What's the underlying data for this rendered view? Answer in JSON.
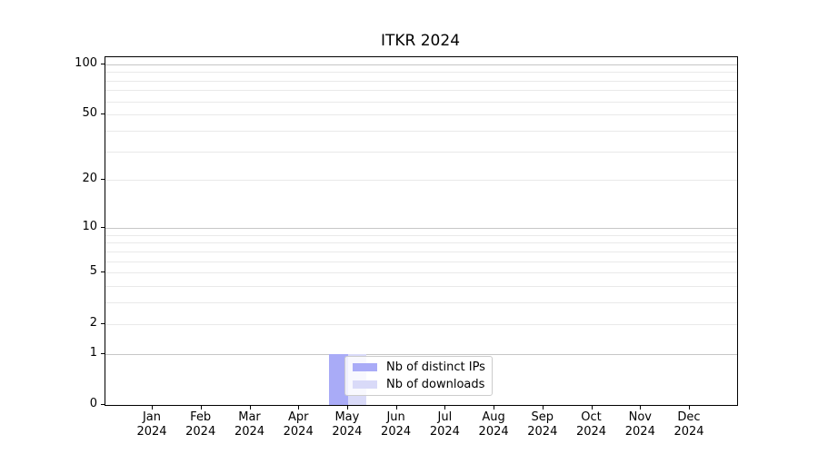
{
  "chart_data": {
    "type": "bar",
    "title": "ITKR 2024",
    "categories": [
      "Jan 2024",
      "Feb 2024",
      "Mar 2024",
      "Apr 2024",
      "May 2024",
      "Jun 2024",
      "Jul 2024",
      "Aug 2024",
      "Sep 2024",
      "Oct 2024",
      "Nov 2024",
      "Dec 2024"
    ],
    "series": [
      {
        "name": "Nb of distinct IPs",
        "color": "#a9abf7",
        "values": [
          0,
          0,
          0,
          0,
          1,
          0,
          0,
          0,
          0,
          0,
          0,
          0
        ]
      },
      {
        "name": "Nb of downloads",
        "color": "#d9daf8",
        "values": [
          0,
          0,
          0,
          0,
          1,
          0,
          0,
          0,
          0,
          0,
          0,
          0
        ]
      }
    ],
    "xlabel": "",
    "ylabel": "",
    "yscale": "log1p",
    "ylim": [
      0,
      110
    ],
    "yticks": [
      0,
      1,
      2,
      5,
      10,
      20,
      50,
      100
    ],
    "grid_major": [
      1,
      10,
      100
    ],
    "grid_minor": [
      2,
      3,
      4,
      5,
      6,
      7,
      8,
      9,
      20,
      30,
      40,
      50,
      60,
      70,
      80,
      90
    ],
    "legend_position": "inside-bottom-left-of-center",
    "grid": true
  },
  "legend": {
    "items": [
      {
        "label": "Nb of distinct IPs",
        "color": "#a9abf7"
      },
      {
        "label": "Nb of downloads",
        "color": "#d9daf8"
      }
    ]
  },
  "colors": {
    "bar_distinct_ips": "#a9abf7",
    "bar_downloads": "#d9daf8",
    "grid_major": "#c6c6c6",
    "grid_minor": "#e9e9e9",
    "axis": "#000000",
    "legend_border": "#cccccc",
    "background": "#ffffff"
  }
}
